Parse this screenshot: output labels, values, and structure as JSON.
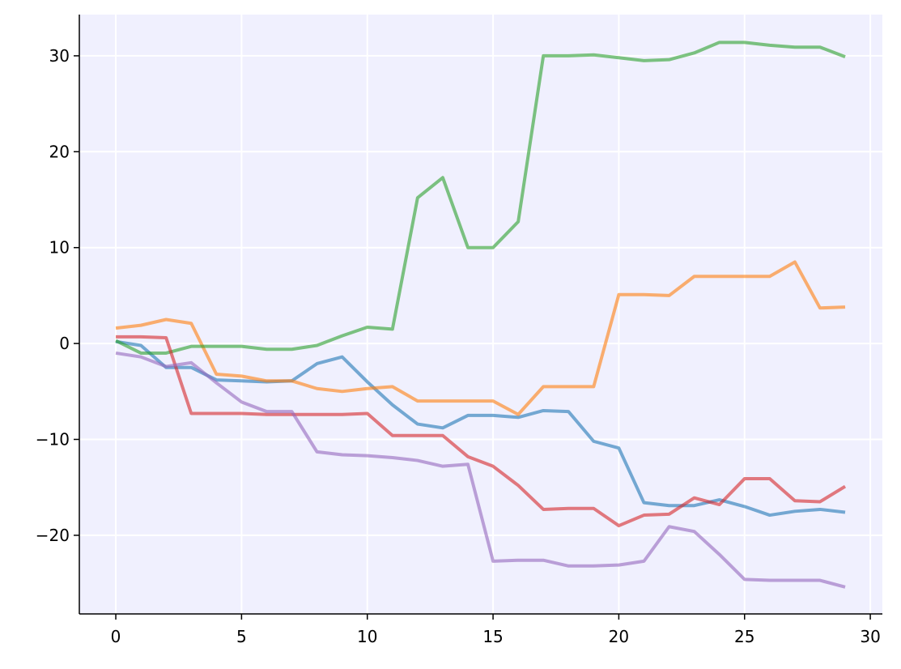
{
  "chart_data": {
    "type": "line",
    "x": [
      0,
      1,
      2,
      3,
      4,
      5,
      6,
      7,
      8,
      9,
      10,
      11,
      12,
      13,
      14,
      15,
      16,
      17,
      18,
      19,
      20,
      21,
      22,
      23,
      24,
      25,
      26,
      27,
      28,
      29
    ],
    "series": [
      {
        "color": "#1f77b4",
        "values": [
          0.2,
          -0.2,
          -2.5,
          -2.5,
          -3.8,
          -3.9,
          -4.0,
          -3.9,
          -2.1,
          -1.4,
          -4.0,
          -6.4,
          -8.4,
          -8.8,
          -7.5,
          -7.5,
          -7.7,
          -7.0,
          -7.1,
          -10.2,
          -10.9,
          -16.6,
          -16.9,
          -16.9,
          -16.3,
          -17.0,
          -17.9,
          -17.5,
          -17.3,
          -17.6
        ]
      },
      {
        "color": "#ff7f0e",
        "values": [
          1.6,
          1.9,
          2.5,
          2.1,
          -3.2,
          -3.4,
          -3.9,
          -3.9,
          -4.7,
          -5.0,
          -4.7,
          -4.5,
          -6.0,
          -6.0,
          -6.0,
          -6.0,
          -7.4,
          -4.5,
          -4.5,
          -4.5,
          5.1,
          5.1,
          5.0,
          7.0,
          7.0,
          7.0,
          7.0,
          8.5,
          3.7,
          3.8
        ]
      },
      {
        "color": "#2ca02c",
        "values": [
          0.3,
          -1.0,
          -1.0,
          -0.3,
          -0.3,
          -0.3,
          -0.6,
          -0.6,
          -0.2,
          0.8,
          1.7,
          1.5,
          15.2,
          17.3,
          10.0,
          10.0,
          12.7,
          30.0,
          30.0,
          30.1,
          29.8,
          29.5,
          29.6,
          30.3,
          31.4,
          31.4,
          31.1,
          30.9,
          30.9,
          29.9
        ]
      },
      {
        "color": "#d62728",
        "values": [
          0.7,
          0.7,
          0.6,
          -7.3,
          -7.3,
          -7.3,
          -7.4,
          -7.4,
          -7.4,
          -7.4,
          -7.3,
          -9.6,
          -9.6,
          -9.6,
          -11.8,
          -12.8,
          -14.8,
          -17.3,
          -17.2,
          -17.2,
          -19.0,
          -17.9,
          -17.8,
          -16.1,
          -16.8,
          -14.1,
          -14.1,
          -16.4,
          -16.5,
          -14.9
        ]
      },
      {
        "color": "#9467bd",
        "values": [
          -1.0,
          -1.4,
          -2.4,
          -2.0,
          -4.1,
          -6.1,
          -7.1,
          -7.1,
          -11.3,
          -11.6,
          -11.7,
          -11.9,
          -12.2,
          -12.8,
          -12.6,
          -22.7,
          -22.6,
          -22.6,
          -23.2,
          -23.2,
          -23.1,
          -22.7,
          -19.1,
          -19.6,
          -22.0,
          -24.6,
          -24.7,
          -24.7,
          -24.7,
          -25.4
        ]
      }
    ],
    "xlim": [
      -1.45,
      30.48
    ],
    "ylim": [
      -28.2,
      34.3
    ],
    "xticks": [
      0,
      5,
      10,
      15,
      20,
      25,
      30
    ],
    "yticks": [
      {
        "value": -20,
        "label": "−20"
      },
      {
        "value": -10,
        "label": "−10"
      },
      0,
      10,
      20,
      30
    ],
    "grid": true
  }
}
